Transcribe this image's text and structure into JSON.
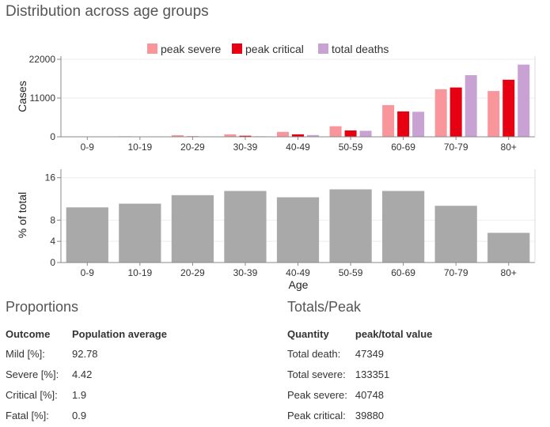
{
  "page": {
    "title": "Distribution across age groups"
  },
  "colors": {
    "peak_severe": "#f8969c",
    "peak_critical": "#e60012",
    "total_deaths": "#c9a2d4",
    "percent_bar": "#a9a9a9",
    "axis": "#888888",
    "grid": "#eeeeee"
  },
  "chart_data": [
    {
      "type": "bar",
      "ylabel": "Cases",
      "xlabel": "",
      "ylim": [
        0,
        22000
      ],
      "yticks": [
        "0",
        "11000",
        "22000"
      ],
      "yticks_values": [
        0,
        11000,
        22000
      ],
      "categories": [
        "0-9",
        "10-19",
        "20-29",
        "30-39",
        "40-49",
        "50-59",
        "60-69",
        "70-79",
        "80+"
      ],
      "legend": "top-right",
      "series": [
        {
          "name": "peak severe",
          "color_key": "peak_severe",
          "values": [
            60,
            150,
            450,
            700,
            1400,
            3000,
            9000,
            13500,
            13000
          ]
        },
        {
          "name": "peak critical",
          "color_key": "peak_critical",
          "values": [
            20,
            50,
            150,
            300,
            700,
            1800,
            7200,
            14000,
            16200
          ]
        },
        {
          "name": "total deaths",
          "color_key": "total_deaths",
          "values": [
            5,
            20,
            60,
            150,
            500,
            1700,
            7100,
            17500,
            20500
          ]
        }
      ]
    },
    {
      "type": "bar",
      "ylabel": "% of total",
      "xlabel": "Age",
      "ylim": [
        0,
        17
      ],
      "yticks": [
        "0",
        "4",
        "8",
        "16"
      ],
      "yticks_values": [
        0,
        4,
        8,
        16
      ],
      "categories": [
        "0-9",
        "10-19",
        "20-29",
        "30-39",
        "40-49",
        "50-59",
        "60-69",
        "70-79",
        "80+"
      ],
      "series": [
        {
          "name": "% of total",
          "color_key": "percent_bar",
          "values": [
            10.4,
            11.1,
            12.7,
            13.5,
            12.3,
            13.8,
            13.5,
            10.7,
            5.6
          ]
        }
      ]
    }
  ],
  "proportions": {
    "title": "Proportions",
    "headers": [
      "Outcome",
      "Population average"
    ],
    "rows": [
      {
        "label": "Mild [%]:",
        "value": "92.78"
      },
      {
        "label": "Severe [%]:",
        "value": "4.42"
      },
      {
        "label": "Critical [%]:",
        "value": "1.9"
      },
      {
        "label": "Fatal [%]:",
        "value": "0.9"
      }
    ]
  },
  "totals": {
    "title": "Totals/Peak",
    "headers": [
      "Quantity",
      "peak/total value"
    ],
    "rows": [
      {
        "label": "Total death:",
        "value": "47349"
      },
      {
        "label": "Total severe:",
        "value": "133351"
      },
      {
        "label": "Peak severe:",
        "value": "40748"
      },
      {
        "label": "Peak critical:",
        "value": "39880"
      }
    ]
  }
}
